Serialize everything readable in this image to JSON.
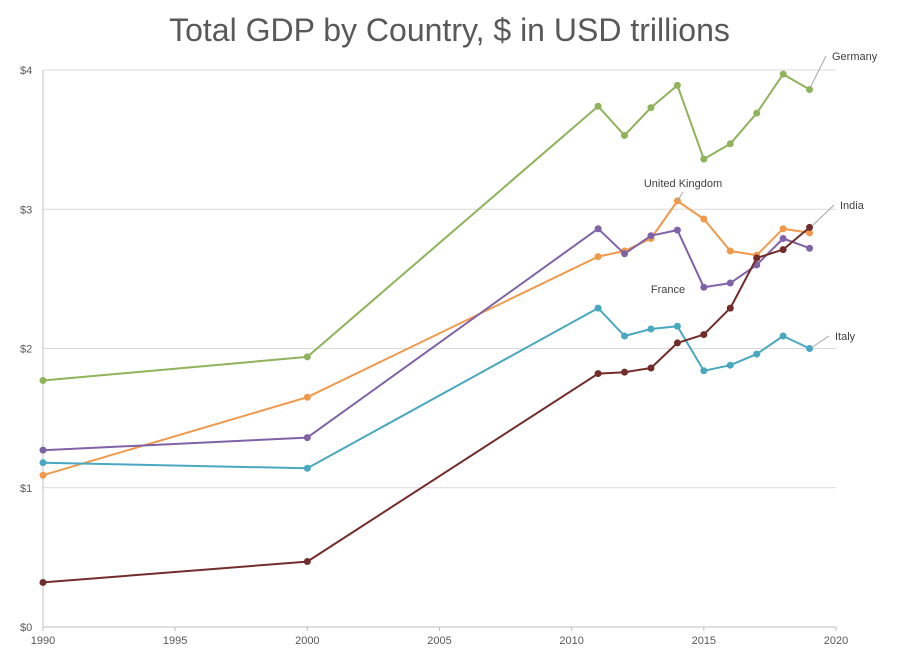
{
  "chart_data": {
    "type": "line",
    "title": "Total GDP by Country, $ in USD trillions",
    "xlabel": "",
    "ylabel": "",
    "xlim": [
      1990,
      2020
    ],
    "ylim": [
      0,
      4
    ],
    "x_ticks": [
      "1990",
      "1995",
      "2000",
      "2005",
      "2010",
      "2015",
      "2020"
    ],
    "y_ticks": [
      "$0",
      "$1",
      "$2",
      "$3",
      "$4"
    ],
    "grid": "horizontal",
    "legend": "direct labels",
    "x": [
      1990,
      2000,
      2011,
      2012,
      2013,
      2014,
      2015,
      2016,
      2017,
      2018,
      2019
    ],
    "series": [
      {
        "name": "Germany",
        "color": "#8fb35a",
        "values": [
          1.77,
          1.94,
          3.74,
          3.53,
          3.73,
          3.89,
          3.36,
          3.47,
          3.69,
          3.97,
          3.86
        ]
      },
      {
        "name": "United Kingdom",
        "color": "#f0994a",
        "values": [
          1.09,
          1.65,
          2.66,
          2.7,
          2.79,
          3.06,
          2.93,
          2.7,
          2.67,
          2.86,
          2.83
        ]
      },
      {
        "name": "France",
        "color": "#8062a7",
        "values": [
          1.27,
          1.36,
          2.86,
          2.68,
          2.81,
          2.85,
          2.44,
          2.47,
          2.6,
          2.79,
          2.72
        ]
      },
      {
        "name": "Italy",
        "color": "#49a8c0",
        "values": [
          1.18,
          1.14,
          2.29,
          2.09,
          2.14,
          2.16,
          1.84,
          1.88,
          1.96,
          2.09,
          2.0
        ]
      },
      {
        "name": "India",
        "color": "#722d2b",
        "values": [
          0.32,
          0.47,
          1.82,
          1.83,
          1.86,
          2.04,
          2.1,
          2.29,
          2.65,
          2.71,
          2.87
        ]
      }
    ]
  }
}
